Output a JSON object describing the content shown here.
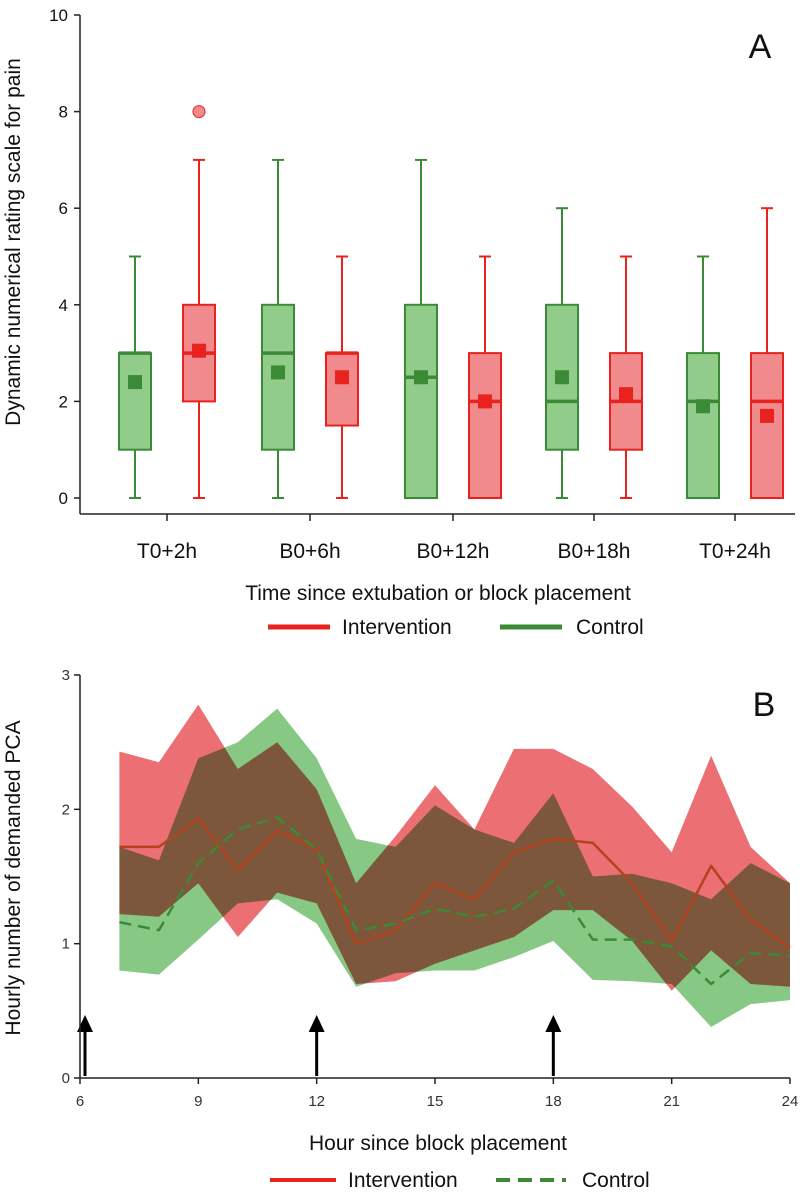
{
  "chart_data": [
    {
      "panel": "A",
      "type": "box",
      "ylabel": "Dynamic numerical rating scale for pain",
      "xlabel": "Time since extubation or block placement",
      "ylim": [
        0,
        10
      ],
      "yticks": [
        0,
        2,
        4,
        6,
        8,
        10
      ],
      "categories": [
        "T0+2h",
        "B0+6h",
        "B0+12h",
        "B0+18h",
        "T0+24h"
      ],
      "legend": {
        "position": "bottom-center"
      },
      "series": [
        {
          "name": "Intervention",
          "color": "#e8221f",
          "fill": "#f08a8c",
          "boxes": [
            {
              "min": 0,
              "q1": 2,
              "median": 3,
              "q3": 4,
              "max": 7,
              "mean": 3.05,
              "outliers": [
                8
              ]
            },
            {
              "min": 0,
              "q1": 1.5,
              "median": 3,
              "q3": 3,
              "max": 5,
              "mean": 2.5,
              "outliers": []
            },
            {
              "min": 0,
              "q1": 0,
              "median": 2,
              "q3": 3,
              "max": 5,
              "mean": 2.0,
              "outliers": []
            },
            {
              "min": 0,
              "q1": 1,
              "median": 2,
              "q3": 3,
              "max": 5,
              "mean": 2.15,
              "outliers": []
            },
            {
              "min": 0,
              "q1": 0,
              "median": 2,
              "q3": 3,
              "max": 6,
              "mean": 1.7,
              "outliers": []
            }
          ]
        },
        {
          "name": "Control",
          "color": "#3b8a35",
          "fill": "#92cc8a",
          "boxes": [
            {
              "min": 0,
              "q1": 1,
              "median": 3,
              "q3": 3,
              "max": 5,
              "mean": 2.4,
              "outliers": []
            },
            {
              "min": 0,
              "q1": 1,
              "median": 3,
              "q3": 4,
              "max": 7,
              "mean": 2.6,
              "outliers": []
            },
            {
              "min": 0,
              "q1": 0,
              "median": 2.5,
              "q3": 4,
              "max": 7,
              "mean": 2.5,
              "outliers": []
            },
            {
              "min": 0,
              "q1": 1,
              "median": 2,
              "q3": 4,
              "max": 6,
              "mean": 2.5,
              "outliers": []
            },
            {
              "min": 0,
              "q1": 0,
              "median": 2,
              "q3": 3,
              "max": 5,
              "mean": 1.9,
              "outliers": []
            }
          ]
        }
      ]
    },
    {
      "panel": "B",
      "type": "line",
      "ylabel": "Hourly number of demanded PCA",
      "xlabel": "Hour since block placement",
      "xlim": [
        6,
        24
      ],
      "ylim": [
        0,
        3
      ],
      "xticks": [
        6,
        9,
        12,
        15,
        18,
        21,
        24
      ],
      "yticks": [
        0,
        1,
        2,
        3
      ],
      "x": [
        7,
        8,
        9,
        10,
        11,
        12,
        13,
        14,
        15,
        16,
        17,
        18,
        19,
        20,
        21,
        22,
        23,
        24
      ],
      "arrows_at": [
        6,
        12,
        18
      ],
      "legend": {
        "position": "bottom-center"
      },
      "series": [
        {
          "name": "Intervention",
          "style": "solid",
          "color": "#e8221f",
          "band_fill": "#ec6f73",
          "values": [
            1.72,
            1.72,
            1.93,
            1.55,
            1.84,
            1.7,
            1.0,
            1.1,
            1.45,
            1.33,
            1.68,
            1.78,
            1.75,
            1.45,
            1.02,
            1.58,
            1.18,
            0.97
          ],
          "upper": [
            2.43,
            2.35,
            2.78,
            2.3,
            2.5,
            2.15,
            1.45,
            1.8,
            2.18,
            1.85,
            2.45,
            2.45,
            2.3,
            2.02,
            1.68,
            2.4,
            1.72,
            1.45
          ],
          "lower": [
            1.22,
            1.2,
            1.45,
            1.05,
            1.38,
            1.3,
            0.7,
            0.72,
            0.85,
            0.95,
            1.05,
            1.25,
            1.25,
            1.02,
            0.65,
            0.95,
            0.7,
            0.68
          ]
        },
        {
          "name": "Control",
          "style": "dashed",
          "color": "#3b8a35",
          "band_fill": "#7dc47a",
          "values": [
            1.16,
            1.1,
            1.6,
            1.85,
            1.94,
            1.7,
            1.1,
            1.15,
            1.26,
            1.2,
            1.26,
            1.47,
            1.03,
            1.03,
            0.98,
            0.7,
            0.93,
            0.91
          ],
          "upper": [
            1.72,
            1.62,
            2.38,
            2.5,
            2.75,
            2.38,
            1.78,
            1.72,
            2.03,
            1.85,
            1.75,
            2.12,
            1.5,
            1.52,
            1.45,
            1.33,
            1.6,
            1.45
          ],
          "lower": [
            0.8,
            0.77,
            1.03,
            1.3,
            1.33,
            1.15,
            0.68,
            0.78,
            0.8,
            0.8,
            0.9,
            1.02,
            0.73,
            0.72,
            0.7,
            0.38,
            0.55,
            0.58
          ]
        }
      ]
    }
  ]
}
